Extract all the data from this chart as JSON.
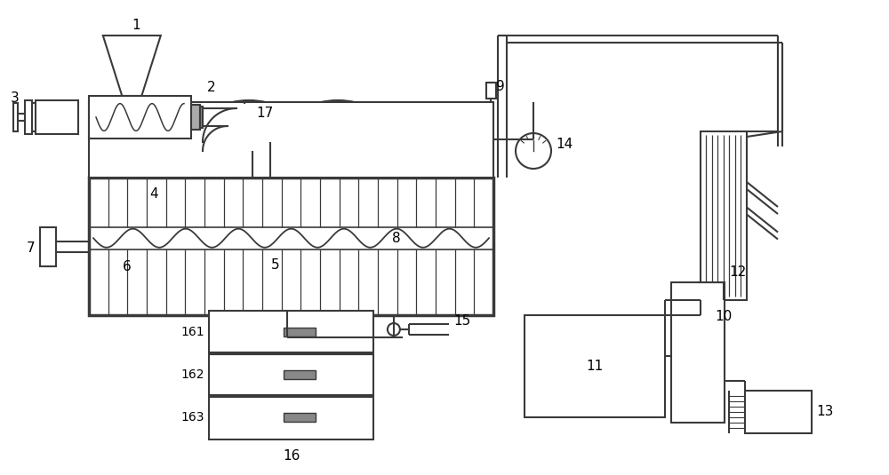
{
  "bg_color": "#ffffff",
  "lc": "#3a3a3a",
  "lw": 1.5,
  "tlw": 2.5,
  "fig_w": 10.0,
  "fig_h": 5.35
}
